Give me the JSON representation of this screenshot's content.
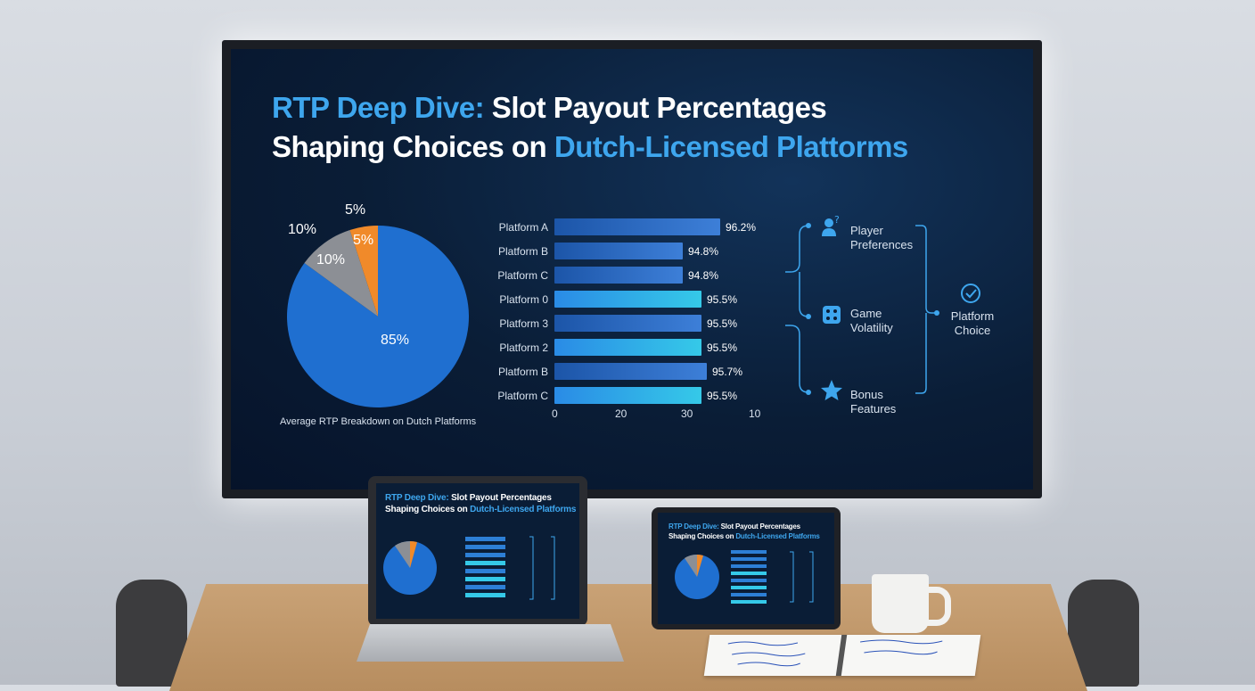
{
  "slide": {
    "title_line1_hl": "RTP Deep Dive:",
    "title_line1_rest": " Slot Payout Percentages",
    "title_line2_pre": "Shaping Choices on ",
    "title_line2_hl": "Dutch-Licensed Plattorms"
  },
  "colors": {
    "accent": "#3ea6ee",
    "pie_main": "#1f6fd0",
    "pie_gray": "#8c8f95",
    "pie_orange": "#f08a2a",
    "bar_dark": "#1c55a8",
    "bar_light": "#35c9e8"
  },
  "chart_data": [
    {
      "type": "pie",
      "slices": [
        {
          "label": "85%",
          "value": 85
        },
        {
          "label": "10%",
          "value": 10
        },
        {
          "label": "5%",
          "value": 5
        }
      ],
      "outer_labels": [
        "10%",
        "5%"
      ],
      "caption": "Average RTP Breakdown on Dutch Platforms"
    },
    {
      "type": "bar",
      "orientation": "horizontal",
      "categories": [
        "Platform A",
        "Platform B",
        "Platform C",
        "Platform 0",
        "Platform 3",
        "Platform 2",
        "Platform B",
        "Platform C"
      ],
      "values": [
        96.2,
        94.8,
        94.8,
        95.5,
        95.5,
        95.5,
        95.7,
        95.5
      ],
      "value_labels": [
        "96.2%",
        "94.8%",
        "94.8%",
        "95.5%",
        "95.5%",
        "95.5%",
        "95.7%",
        "95.5%"
      ],
      "x_ticks": [
        "0",
        "20",
        "30",
        "10"
      ],
      "highlighted": [
        3,
        5,
        7
      ]
    }
  ],
  "factors": {
    "items": [
      {
        "label_l1": "Player",
        "label_l2": "Preferences",
        "icon": "user-question-icon"
      },
      {
        "label_l1": "Game",
        "label_l2": "Volatility",
        "icon": "dice-icon"
      },
      {
        "label_l1": "Bonus",
        "label_l2": "Features",
        "icon": "star-icon"
      }
    ],
    "result": {
      "label_l1": "Platform",
      "label_l2": "Choice",
      "icon": "check-circle-icon"
    }
  },
  "laptop": {
    "title_line1_hl": "RTP Deep Dive:",
    "title_line1_rest": " Slot Payout Percentages",
    "title_line2_pre": "Shaping Choices on ",
    "title_line2_hl": "Dutch-Licensed Platforms"
  },
  "tablet": {
    "title_line1_hl": "RTP Deep Dive:",
    "title_line1_rest": " Slot Payout Percentages",
    "title_line2_pre": "Shaping Choices on ",
    "title_line2_hl": "Dutch-Licensed Platforms"
  }
}
